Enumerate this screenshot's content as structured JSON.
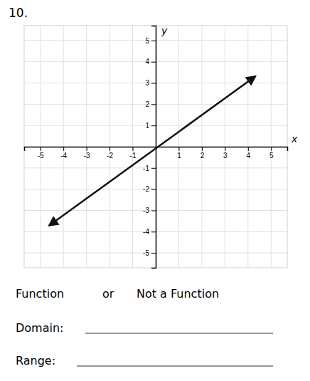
{
  "chart_data": {
    "type": "line",
    "title": "10.",
    "x_label": "x",
    "y_label": "y",
    "x": [
      -4.6,
      4.3
    ],
    "values": [
      -3.7,
      3.3
    ],
    "color": "#111111",
    "marker": "arrow",
    "xlim": [
      -5.7,
      5.7
    ],
    "ylim": [
      -5.7,
      5.7
    ],
    "xticks": [
      -5,
      -4,
      -3,
      -2,
      -1,
      1,
      2,
      3,
      4,
      5
    ],
    "yticks": [
      -5,
      -4,
      -3,
      -2,
      -1,
      1,
      2,
      3,
      4,
      5
    ],
    "grid": true,
    "annotations": [
      "Function",
      "or",
      "Not a Function",
      "Domain:",
      "Range:"
    ]
  }
}
